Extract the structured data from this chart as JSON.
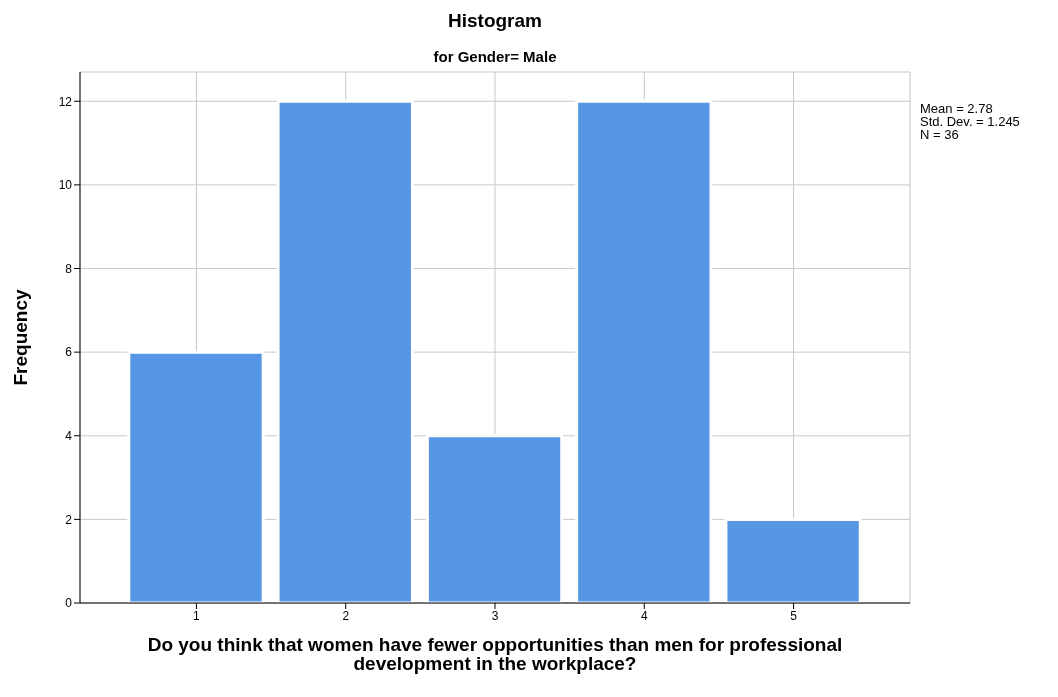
{
  "chart_data": {
    "type": "histogram",
    "title": "Histogram",
    "subtitle": "for Gender= Male",
    "xlabel": "Do you think that women have fewer opportunities than men for professional development in the workplace?",
    "ylabel": "Frequency",
    "bins": [
      0.5,
      1.5,
      2.5,
      3.5,
      4.5,
      5.5
    ],
    "values": [
      6,
      12,
      4,
      12,
      2
    ],
    "color": "#5596e5",
    "xlim": [
      0.22,
      5.78
    ],
    "xticks": [
      1,
      2,
      3,
      4,
      5
    ],
    "ylim": [
      0,
      12.7
    ],
    "yticks": [
      0,
      2,
      4,
      6,
      8,
      10,
      12
    ],
    "grid": true,
    "annotations": [
      "Mean = 2.78",
      "Std. Dev. = 1.245",
      "N = 36"
    ]
  }
}
